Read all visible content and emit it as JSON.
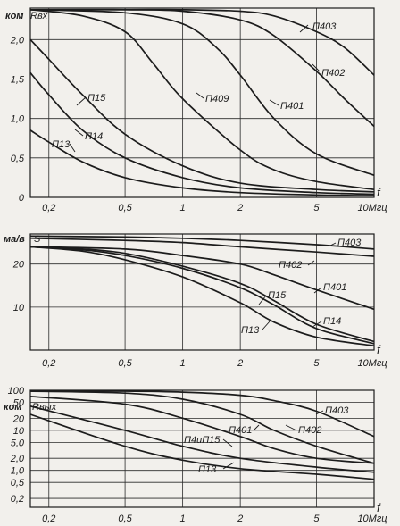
{
  "chart_data": [
    {
      "type": "line",
      "xscale": "log",
      "xlim": [
        0.16,
        10
      ],
      "x_ticks": [
        0.2,
        0.5,
        1,
        2,
        5,
        10
      ],
      "x_tick_labels": [
        "0,2",
        "0,5",
        "1",
        "2",
        "5",
        "10Мгц"
      ],
      "xlabel": "f",
      "ylim": [
        0,
        2.4
      ],
      "y_ticks": [
        0,
        0.5,
        1.0,
        1.5,
        2.0
      ],
      "y_tick_labels": [
        "0",
        "0,5",
        "1,0",
        "1,5",
        "2,0"
      ],
      "y_unit": "ком",
      "ylabel": "Rвх",
      "grid": true,
      "series": [
        {
          "name": "П403",
          "x": [
            0.16,
            0.5,
            1,
            2,
            3,
            5,
            7,
            10
          ],
          "y": [
            2.38,
            2.38,
            2.38,
            2.36,
            2.3,
            2.1,
            1.9,
            1.55
          ]
        },
        {
          "name": "П402",
          "x": [
            0.16,
            0.5,
            1,
            2,
            3,
            5,
            7,
            10
          ],
          "y": [
            2.38,
            2.38,
            2.36,
            2.25,
            2.05,
            1.6,
            1.25,
            0.9
          ]
        },
        {
          "name": "П401",
          "x": [
            0.16,
            0.5,
            1,
            1.5,
            2,
            3,
            5,
            10
          ],
          "y": [
            2.38,
            2.34,
            2.2,
            1.9,
            1.55,
            1.0,
            0.55,
            0.28
          ]
        },
        {
          "name": "П409",
          "x": [
            0.16,
            0.3,
            0.5,
            0.7,
            1,
            2,
            3,
            5,
            10
          ],
          "y": [
            2.38,
            2.3,
            2.1,
            1.7,
            1.25,
            0.6,
            0.35,
            0.2,
            0.1
          ]
        },
        {
          "name": "П15",
          "x": [
            0.16,
            0.2,
            0.3,
            0.5,
            1,
            2,
            5,
            10
          ],
          "y": [
            2.0,
            1.75,
            1.3,
            0.8,
            0.4,
            0.18,
            0.1,
            0.07
          ]
        },
        {
          "name": "П14",
          "x": [
            0.16,
            0.2,
            0.3,
            0.5,
            1,
            2,
            5,
            10
          ],
          "y": [
            1.58,
            1.3,
            0.85,
            0.5,
            0.25,
            0.12,
            0.06,
            0.04
          ]
        },
        {
          "name": "П13",
          "x": [
            0.16,
            0.2,
            0.3,
            0.5,
            1,
            2,
            5,
            10
          ],
          "y": [
            0.85,
            0.7,
            0.45,
            0.25,
            0.12,
            0.06,
            0.03,
            0.02
          ]
        }
      ]
    },
    {
      "type": "line",
      "xscale": "log",
      "xlim": [
        0.16,
        10
      ],
      "x_ticks": [
        0.2,
        0.5,
        1,
        2,
        5,
        10
      ],
      "x_tick_labels": [
        "0,2",
        "0,5",
        "1",
        "2",
        "5",
        "10Мгц"
      ],
      "xlabel": "f",
      "ylim": [
        0,
        27
      ],
      "y_ticks": [
        10,
        20
      ],
      "y_tick_labels": [
        "10",
        "20"
      ],
      "y_unit": "ма/в",
      "ylabel": "S",
      "grid": true,
      "series": [
        {
          "name": "П403",
          "x": [
            0.16,
            0.5,
            1,
            2,
            5,
            10
          ],
          "y": [
            26.5,
            26.3,
            26.0,
            25.5,
            24.5,
            23.5
          ]
        },
        {
          "name": "П402",
          "x": [
            0.16,
            0.5,
            1,
            2,
            5,
            10
          ],
          "y": [
            26.0,
            25.5,
            25.0,
            24.0,
            22.8,
            21.8
          ]
        },
        {
          "name": "П401",
          "x": [
            0.16,
            0.5,
            1,
            2,
            3,
            5,
            10
          ],
          "y": [
            24.0,
            23.5,
            22.0,
            20.0,
            17.5,
            14.0,
            9.5
          ]
        },
        {
          "name": "П15",
          "x": [
            0.16,
            0.3,
            0.5,
            1,
            2,
            3,
            5,
            10
          ],
          "y": [
            24.0,
            23.5,
            22.5,
            19.5,
            15.5,
            11.5,
            6.0,
            2.0
          ]
        },
        {
          "name": "П14",
          "x": [
            0.16,
            0.3,
            0.5,
            1,
            2,
            3,
            5,
            10
          ],
          "y": [
            24.0,
            23.3,
            22.0,
            19.0,
            14.5,
            10.5,
            5.0,
            1.5
          ]
        },
        {
          "name": "П13",
          "x": [
            0.16,
            0.3,
            0.5,
            1,
            2,
            3,
            5,
            10
          ],
          "y": [
            24.0,
            23.0,
            21.0,
            17.0,
            11.0,
            6.5,
            3.0,
            1.0
          ]
        }
      ]
    },
    {
      "type": "line",
      "xscale": "log",
      "yscale": "log",
      "xlim": [
        0.16,
        10
      ],
      "x_ticks": [
        0.2,
        0.5,
        1,
        2,
        5,
        10
      ],
      "x_tick_labels": [
        "0,2",
        "0,5",
        "1",
        "2",
        "5",
        "10Мгц"
      ],
      "xlabel": "f",
      "ylim": [
        0.12,
        100
      ],
      "y_ticks": [
        100,
        50,
        20,
        10,
        5,
        2,
        1,
        0.5,
        0.2
      ],
      "y_tick_labels": [
        "100",
        "50",
        "20",
        "10",
        "5,0",
        "2,0",
        "1,0",
        "0,5",
        "0,2"
      ],
      "y_unit": "ком",
      "ylabel": "Rвых",
      "grid": true,
      "series": [
        {
          "name": "П403",
          "x": [
            0.16,
            0.5,
            1,
            2,
            3,
            5,
            10
          ],
          "y": [
            95,
            95,
            90,
            75,
            55,
            30,
            7
          ]
        },
        {
          "name": "П402",
          "x": [
            0.16,
            0.5,
            1,
            2,
            3,
            5,
            10
          ],
          "y": [
            95,
            85,
            60,
            25,
            10,
            4,
            1.5
          ]
        },
        {
          "name": "П401",
          "x": [
            0.16,
            0.5,
            1,
            2,
            3,
            5,
            10
          ],
          "y": [
            70,
            45,
            20,
            7,
            3.5,
            2,
            1.5
          ]
        },
        {
          "name": "П4иП15",
          "x": [
            0.16,
            0.5,
            1,
            2,
            5,
            10
          ],
          "y": [
            40,
            10,
            4,
            2,
            1.2,
            0.9
          ]
        },
        {
          "name": "П13",
          "x": [
            0.16,
            0.5,
            1,
            2,
            5,
            10
          ],
          "y": [
            25,
            4,
            1.8,
            1.1,
            0.8,
            0.6
          ]
        }
      ]
    }
  ],
  "labels": {
    "p1": {
      "P403": "П403",
      "P402": "П402",
      "P401": "П401",
      "P409": "П409",
      "P15": "П15",
      "P14": "П14",
      "P13": "П13"
    },
    "p2": {
      "P403": "П403",
      "P402": "П402",
      "P401": "П401",
      "P15": "П15",
      "P14": "П14",
      "P13": "П13"
    },
    "p3": {
      "P403": "П403",
      "P402": "П402",
      "P401": "П401",
      "P4P15": "П4иП15",
      "P13": "П13"
    }
  }
}
